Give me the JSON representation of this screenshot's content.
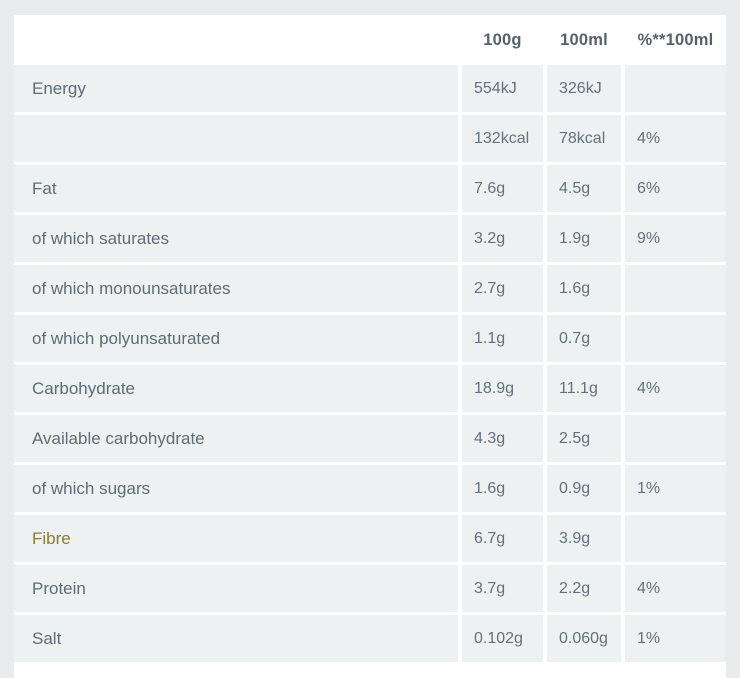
{
  "colors": {
    "outer_background": "#e8eced",
    "card_background": "#ffffff",
    "cell_background": "#eef1f2",
    "header_text": "#55626c",
    "cell_text": "#64707b",
    "fibre_link": "#8a7c2e"
  },
  "table": {
    "headers": {
      "label": "",
      "per100g": "100g",
      "per100ml": "100ml",
      "pct": "%**100ml"
    },
    "rows": [
      {
        "label": "Energy",
        "per100g": "554kJ",
        "per100ml": "326kJ",
        "pct": ""
      },
      {
        "label": "",
        "per100g": "132kcal",
        "per100ml": "78kcal",
        "pct": "4%"
      },
      {
        "label": "Fat",
        "per100g": "7.6g",
        "per100ml": "4.5g",
        "pct": "6%"
      },
      {
        "label": "of which saturates",
        "per100g": "3.2g",
        "per100ml": "1.9g",
        "pct": "9%"
      },
      {
        "label": "of which monounsaturates",
        "per100g": "2.7g",
        "per100ml": "1.6g",
        "pct": ""
      },
      {
        "label": "of which polyunsaturated",
        "per100g": "1.1g",
        "per100ml": "0.7g",
        "pct": ""
      },
      {
        "label": "Carbohydrate",
        "per100g": "18.9g",
        "per100ml": "11.1g",
        "pct": "4%"
      },
      {
        "label": "Available carbohydrate",
        "per100g": "4.3g",
        "per100ml": "2.5g",
        "pct": ""
      },
      {
        "label": "of which sugars",
        "per100g": "1.6g",
        "per100ml": "0.9g",
        "pct": "1%"
      },
      {
        "label": "Fibre",
        "per100g": "6.7g",
        "per100ml": "3.9g",
        "pct": ""
      },
      {
        "label": "Protein",
        "per100g": "3.7g",
        "per100ml": "2.2g",
        "pct": "4%"
      },
      {
        "label": "Salt",
        "per100g": "0.102g",
        "per100ml": "0.060g",
        "pct": "1%"
      }
    ]
  }
}
